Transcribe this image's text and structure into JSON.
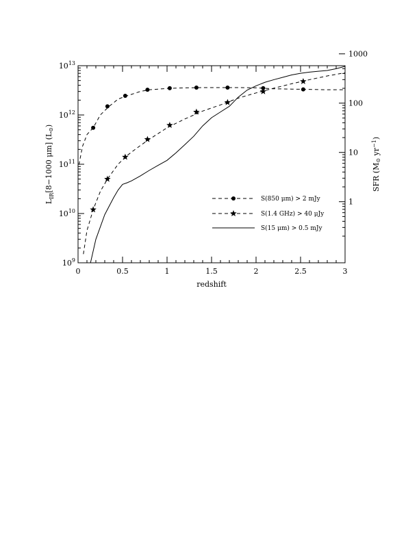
{
  "chart_data": {
    "type": "line",
    "xlabel": "redshift",
    "ylabel": {
      "main": "L",
      "sub": "IR",
      "rest": "[8−1000 μm] (L",
      "sun": "⊙",
      "close": ")"
    },
    "y2label": {
      "main": "SFR (M",
      "sun": "⊙",
      "rest": " yr",
      "exp": "−1",
      "close": ")"
    },
    "xlim": [
      0,
      3
    ],
    "ylim": [
      1000000000.0,
      10000000000000.0
    ],
    "y_scale": "log",
    "xticks": [
      {
        "value": 0,
        "label": "0"
      },
      {
        "value": 0.5,
        "label": "0.5"
      },
      {
        "value": 1,
        "label": "1"
      },
      {
        "value": 1.5,
        "label": "1.5"
      },
      {
        "value": 2,
        "label": "2"
      },
      {
        "value": 2.5,
        "label": "2.5"
      },
      {
        "value": 3,
        "label": "3"
      }
    ],
    "yticks": [
      {
        "exp": 9,
        "base": "10",
        "power": "9"
      },
      {
        "exp": 10,
        "base": "10",
        "power": "10"
      },
      {
        "exp": 11,
        "base": "10",
        "power": "11"
      },
      {
        "exp": 12,
        "base": "10",
        "power": "12"
      },
      {
        "exp": 13,
        "base": "10",
        "power": "13"
      }
    ],
    "y2ticks": [
      {
        "log_lir": 10.24,
        "label": "1"
      },
      {
        "log_lir": 11.24,
        "label": "10"
      },
      {
        "log_lir": 12.24,
        "label": "100"
      },
      {
        "log_lir": 13.24,
        "label": "1000"
      }
    ],
    "series": [
      {
        "name": "S(850 μm) > 2 mJy",
        "style": "dashed",
        "marker": "circle",
        "x": [
          0.01,
          0.05,
          0.1,
          0.17,
          0.25,
          0.35,
          0.45,
          0.55,
          0.7,
          0.8,
          1.0,
          1.2,
          1.4,
          1.6,
          1.8,
          2.0,
          2.2,
          2.4,
          2.6,
          2.8,
          3.0
        ],
        "y": [
          98000000000.0,
          230000000000.0,
          400000000000.0,
          550000000000.0,
          1000000000000.0,
          1500000000000.0,
          2100000000000.0,
          2450000000000.0,
          3000000000000.0,
          3250000000000.0,
          3450000000000.0,
          3550000000000.0,
          3600000000000.0,
          3600000000000.0,
          3600000000000.0,
          3550000000000.0,
          3400000000000.0,
          3350000000000.0,
          3300000000000.0,
          3250000000000.0,
          3250000000000.0
        ],
        "markers_x": [
          0.17,
          0.33,
          0.53,
          0.78,
          1.03,
          1.33,
          1.68,
          2.08,
          2.53
        ],
        "markers_y": [
          550000000000.0,
          1500000000000.0,
          2450000000000.0,
          3250000000000.0,
          3500000000000.0,
          3600000000000.0,
          3600000000000.0,
          3500000000000.0,
          3300000000000.0
        ]
      },
      {
        "name": "S(1.4 GHz) > 40 μJy",
        "style": "dashed",
        "marker": "star",
        "x": [
          0.06,
          0.1,
          0.17,
          0.25,
          0.33,
          0.45,
          0.55,
          0.7,
          0.8,
          1.0,
          1.2,
          1.4,
          1.6,
          1.8,
          2.0,
          2.2,
          2.4,
          2.6,
          2.8,
          3.0
        ],
        "y": [
          1500000000.0,
          4500000000.0,
          12000000000.0,
          28000000000.0,
          50000000000.0,
          100000000000.0,
          150000000000.0,
          240000000000.0,
          320000000000.0,
          550000000000.0,
          830000000000.0,
          1200000000000.0,
          1600000000000.0,
          2200000000000.0,
          2800000000000.0,
          3500000000000.0,
          4300000000000.0,
          5200000000000.0,
          6200000000000.0,
          7200000000000.0
        ],
        "markers_x": [
          0.17,
          0.33,
          0.53,
          0.78,
          1.03,
          1.33,
          1.68,
          2.08,
          2.53
        ],
        "markers_y": [
          12000000000.0,
          50000000000.0,
          140000000000.0,
          320000000000.0,
          620000000000.0,
          1150000000000.0,
          1800000000000.0,
          3000000000000.0,
          4800000000000.0
        ]
      },
      {
        "name": "S(15 μm) > 0.5 mJy",
        "style": "solid",
        "marker": "none",
        "x": [
          0.14,
          0.2,
          0.3,
          0.4,
          0.45,
          0.5,
          0.55,
          0.6,
          0.7,
          0.8,
          0.9,
          1.0,
          1.1,
          1.2,
          1.3,
          1.4,
          1.5,
          1.6,
          1.7,
          1.8,
          1.9,
          2.0,
          2.1,
          2.2,
          2.3,
          2.4,
          2.5,
          2.6,
          2.7,
          2.8,
          2.9,
          3.0
        ],
        "y": [
          1000000000.0,
          3000000000.0,
          9500000000.0,
          21000000000.0,
          30000000000.0,
          39000000000.0,
          42000000000.0,
          46000000000.0,
          58000000000.0,
          75000000000.0,
          95000000000.0,
          120000000000.0,
          170000000000.0,
          250000000000.0,
          370000000000.0,
          600000000000.0,
          880000000000.0,
          1150000000000.0,
          1500000000000.0,
          2300000000000.0,
          3200000000000.0,
          3900000000000.0,
          4600000000000.0,
          5200000000000.0,
          5800000000000.0,
          6500000000000.0,
          7000000000000.0,
          7400000000000.0,
          7700000000000.0,
          8000000000000.0,
          8700000000000.0,
          9700000000000.0
        ]
      }
    ],
    "legend": {
      "placement": "center-right",
      "entries": [
        "S(850 μm) > 2 mJy",
        "S(1.4 GHz) > 40 μJy",
        "S(15 μm) > 0.5 mJy"
      ]
    },
    "grid": false
  }
}
